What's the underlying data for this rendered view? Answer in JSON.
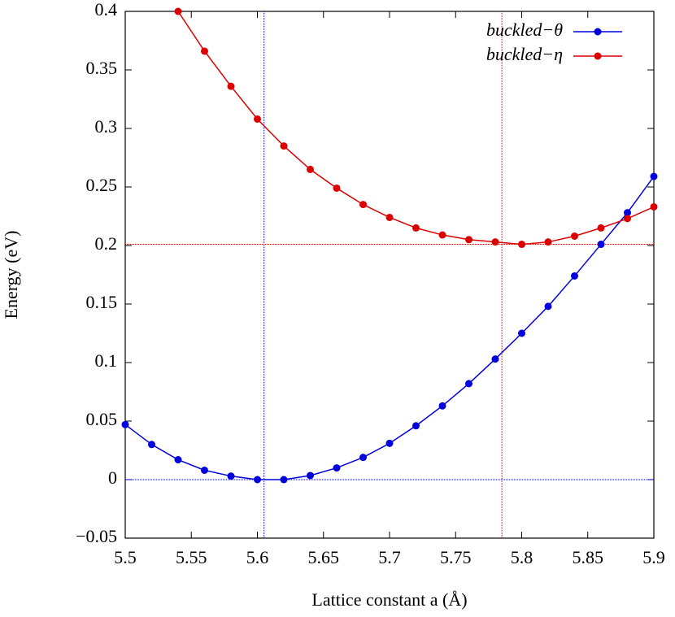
{
  "chart_data": {
    "type": "line",
    "xlabel": "Lattice constant a (Å)",
    "ylabel": "Energy (eV)",
    "x": [
      5.5,
      5.52,
      5.54,
      5.56,
      5.58,
      5.6,
      5.62,
      5.64,
      5.66,
      5.68,
      5.7,
      5.72,
      5.74,
      5.76,
      5.78,
      5.8,
      5.82,
      5.84,
      5.86,
      5.88,
      5.9
    ],
    "series": [
      {
        "name": "buckled−θ",
        "color": "#0000dd",
        "values": [
          0.047,
          0.03,
          0.017,
          0.008,
          0.003,
          0.0,
          0.0,
          0.0035,
          0.01,
          0.019,
          0.031,
          0.046,
          0.063,
          0.082,
          0.103,
          0.125,
          0.148,
          0.174,
          0.201,
          0.228,
          0.259
        ]
      },
      {
        "name": "buckled−η",
        "color": "#dd0000",
        "values": [
          null,
          null,
          0.4,
          0.366,
          0.336,
          0.308,
          0.285,
          0.265,
          0.249,
          0.235,
          0.224,
          0.215,
          0.209,
          0.205,
          0.203,
          0.201,
          0.203,
          0.208,
          0.215,
          0.223,
          0.233
        ]
      }
    ],
    "reference_lines": [
      {
        "axis": "x",
        "value": 5.605,
        "color": "#0000dd"
      },
      {
        "axis": "y",
        "value": 0.0,
        "color": "#0000dd"
      },
      {
        "axis": "x",
        "value": 5.785,
        "color": "#dd0000"
      },
      {
        "axis": "y",
        "value": 0.201,
        "color": "#dd0000"
      }
    ],
    "xlim": [
      5.5,
      5.9
    ],
    "xticks": [
      5.5,
      5.55,
      5.6,
      5.65,
      5.7,
      5.75,
      5.8,
      5.85,
      5.9
    ],
    "ylim": [
      -0.05,
      0.4
    ],
    "yticks": [
      {
        "value": -0.05,
        "label": "−0.05"
      },
      0,
      0.05,
      0.1,
      0.15,
      0.2,
      0.25,
      0.3,
      0.35,
      0.4
    ],
    "legend": "top-right",
    "grid": false
  }
}
